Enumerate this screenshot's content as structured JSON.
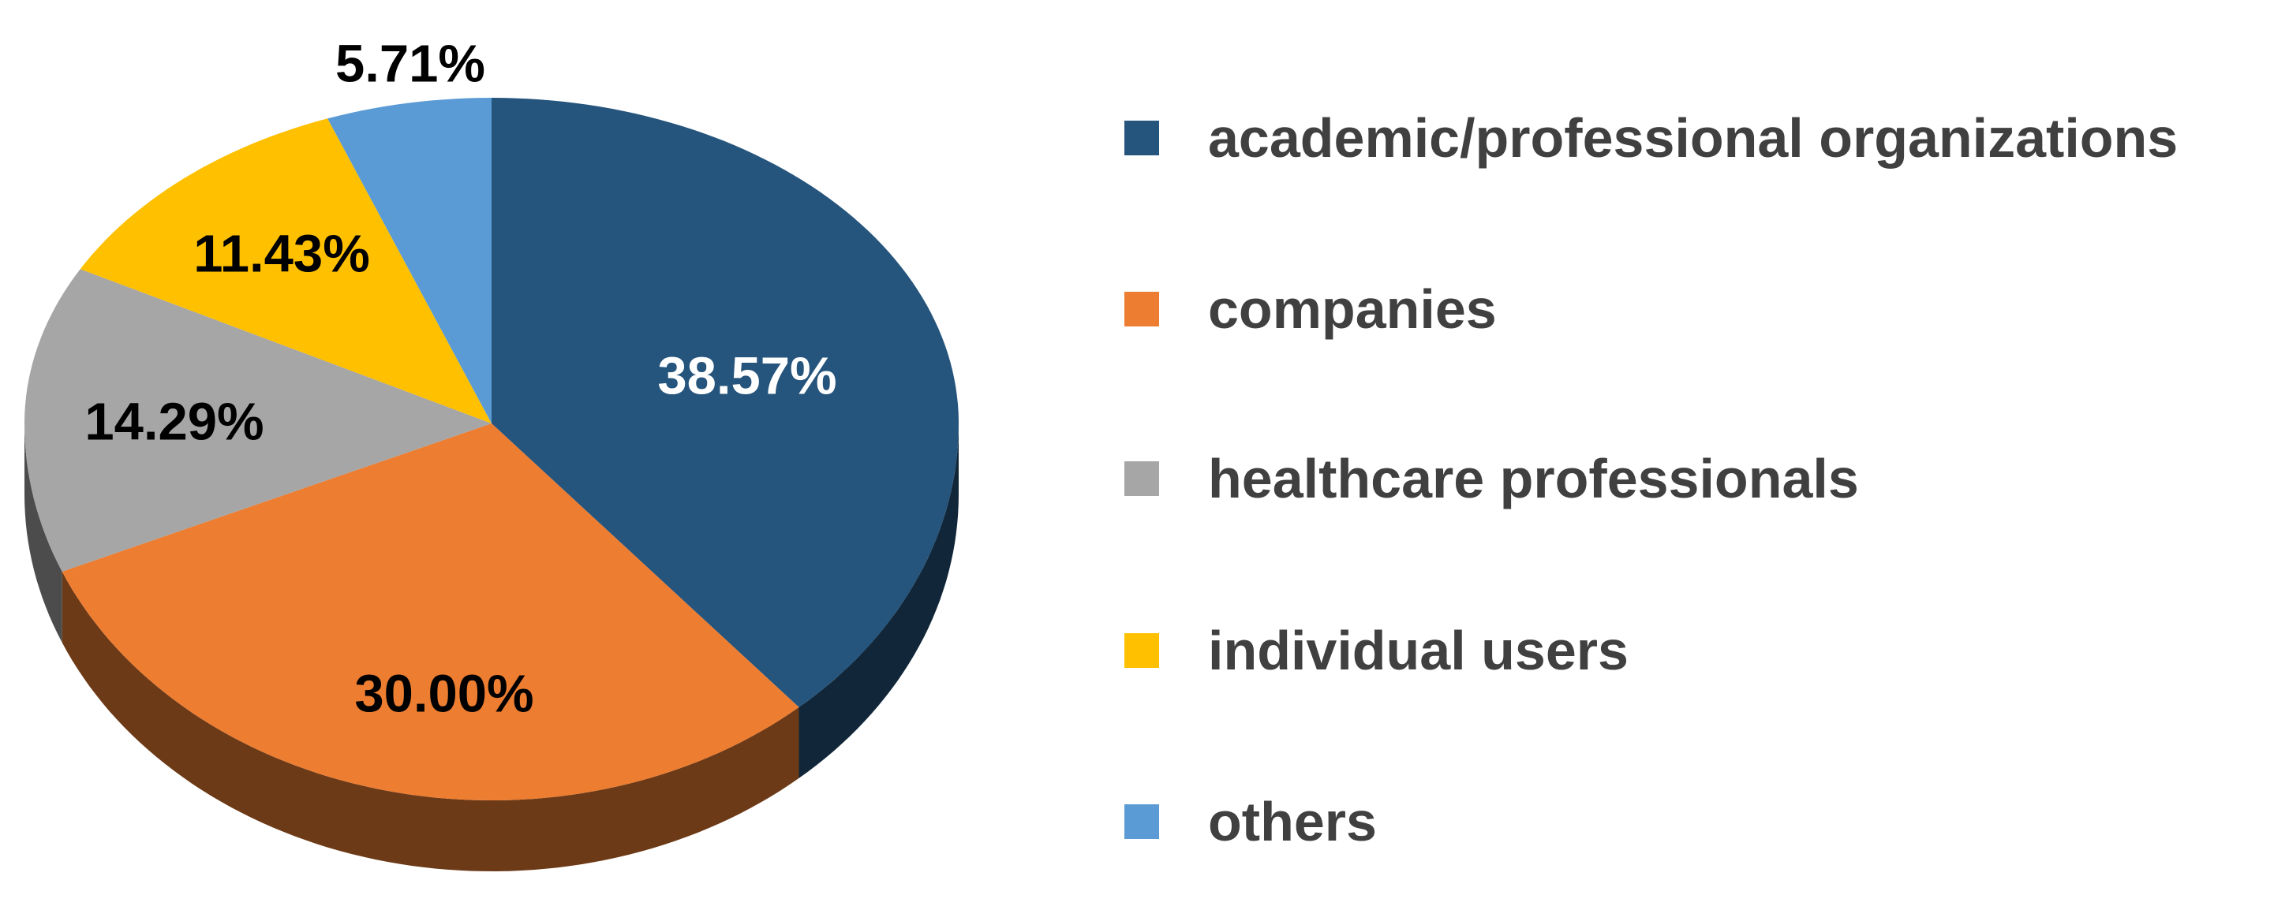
{
  "chart_data": {
    "type": "pie",
    "style": "3d",
    "direction": "clockwise",
    "start_angle_deg": 0,
    "legend_position": "right",
    "background": "#ffffff",
    "legend_text_color": "#404040",
    "slices": [
      {
        "label": "academic/professional organizations",
        "value": 38.57,
        "display": "38.57%",
        "color": "#25547C",
        "label_color": "#FFFFFF"
      },
      {
        "label": "companies",
        "value": 30.0,
        "display": "30.00%",
        "color": "#ED7D31",
        "label_color": "#000000"
      },
      {
        "label": "healthcare professionals",
        "value": 14.29,
        "display": "14.29%",
        "color": "#A6A6A6",
        "label_color": "#000000"
      },
      {
        "label": "individual users",
        "value": 11.43,
        "display": "11.43%",
        "color": "#FFC000",
        "label_color": "#000000"
      },
      {
        "label": "others",
        "value": 5.71,
        "display": "5.71%",
        "color": "#5B9BD5",
        "label_color": "#000000"
      }
    ]
  }
}
